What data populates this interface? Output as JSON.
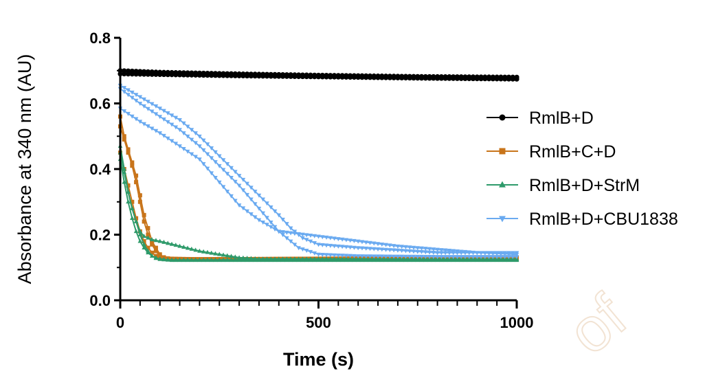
{
  "chart_data": {
    "type": "line",
    "title": "",
    "xlabel": "Time (s)",
    "ylabel": "Absorbance at 340 nm (AU)",
    "xlim": [
      0,
      1000
    ],
    "ylim": [
      0,
      0.8
    ],
    "x_ticks": [
      "0",
      "500",
      "1000"
    ],
    "y_ticks": [
      "0.0",
      "0.2",
      "0.4",
      "0.6",
      "0.8"
    ],
    "grid": false,
    "legend_position": "right",
    "watermark": "of",
    "series": [
      {
        "name": "RmlB+D",
        "color": "#000000",
        "marker": "circle",
        "replicates": [
          [
            [
              0,
              0.7
            ],
            [
              100,
              0.695
            ],
            [
              300,
              0.69
            ],
            [
              500,
              0.686
            ],
            [
              750,
              0.682
            ],
            [
              1000,
              0.68
            ]
          ],
          [
            [
              0,
              0.69
            ],
            [
              100,
              0.688
            ],
            [
              300,
              0.684
            ],
            [
              500,
              0.681
            ],
            [
              750,
              0.677
            ],
            [
              1000,
              0.674
            ]
          ]
        ]
      },
      {
        "name": "RmlB+C+D",
        "color": "#c8741a",
        "marker": "square",
        "replicates": [
          [
            [
              0,
              0.56
            ],
            [
              10,
              0.5
            ],
            [
              20,
              0.46
            ],
            [
              30,
              0.42
            ],
            [
              40,
              0.38
            ],
            [
              50,
              0.32
            ],
            [
              60,
              0.26
            ],
            [
              70,
              0.22
            ],
            [
              80,
              0.18
            ],
            [
              90,
              0.16
            ],
            [
              100,
              0.14
            ],
            [
              110,
              0.13
            ],
            [
              130,
              0.125
            ],
            [
              200,
              0.125
            ],
            [
              1000,
              0.128
            ]
          ],
          [
            [
              0,
              0.53
            ],
            [
              10,
              0.49
            ],
            [
              20,
              0.45
            ],
            [
              30,
              0.41
            ],
            [
              40,
              0.36
            ],
            [
              50,
              0.3
            ],
            [
              60,
              0.24
            ],
            [
              70,
              0.2
            ],
            [
              80,
              0.17
            ],
            [
              90,
              0.15
            ],
            [
              100,
              0.135
            ],
            [
              120,
              0.127
            ],
            [
              200,
              0.125
            ],
            [
              1000,
              0.13
            ]
          ],
          [
            [
              0,
              0.45
            ],
            [
              10,
              0.4
            ],
            [
              20,
              0.35
            ],
            [
              30,
              0.3
            ],
            [
              40,
              0.25
            ],
            [
              50,
              0.21
            ],
            [
              60,
              0.18
            ],
            [
              70,
              0.16
            ],
            [
              80,
              0.145
            ],
            [
              90,
              0.135
            ],
            [
              100,
              0.13
            ],
            [
              140,
              0.125
            ],
            [
              1000,
              0.128
            ]
          ]
        ]
      },
      {
        "name": "RmlB+D+StrM",
        "color": "#2e9a6a",
        "marker": "triangle-up",
        "replicates": [
          [
            [
              0,
              0.47
            ],
            [
              10,
              0.4
            ],
            [
              20,
              0.33
            ],
            [
              30,
              0.28
            ],
            [
              40,
              0.24
            ],
            [
              50,
              0.21
            ],
            [
              60,
              0.195
            ],
            [
              70,
              0.19
            ],
            [
              80,
              0.185
            ],
            [
              100,
              0.18
            ],
            [
              150,
              0.165
            ],
            [
              200,
              0.15
            ],
            [
              250,
              0.14
            ],
            [
              300,
              0.13
            ],
            [
              350,
              0.126
            ],
            [
              1000,
              0.126
            ]
          ],
          [
            [
              0,
              0.45
            ],
            [
              10,
              0.39
            ],
            [
              20,
              0.33
            ],
            [
              30,
              0.28
            ],
            [
              40,
              0.24
            ],
            [
              50,
              0.2
            ],
            [
              60,
              0.17
            ],
            [
              70,
              0.15
            ],
            [
              80,
              0.135
            ],
            [
              90,
              0.13
            ],
            [
              100,
              0.125
            ],
            [
              130,
              0.122
            ],
            [
              1000,
              0.122
            ]
          ],
          [
            [
              0,
              0.43
            ],
            [
              10,
              0.36
            ],
            [
              20,
              0.3
            ],
            [
              30,
              0.25
            ],
            [
              40,
              0.21
            ],
            [
              50,
              0.18
            ],
            [
              60,
              0.16
            ],
            [
              70,
              0.145
            ],
            [
              80,
              0.135
            ],
            [
              90,
              0.128
            ],
            [
              120,
              0.123
            ],
            [
              1000,
              0.124
            ]
          ]
        ]
      },
      {
        "name": "RmlB+D+CBU1838",
        "color": "#6aaaf0",
        "marker": "triangle-down",
        "replicates": [
          [
            [
              0,
              0.655
            ],
            [
              50,
              0.62
            ],
            [
              100,
              0.585
            ],
            [
              150,
              0.55
            ],
            [
              200,
              0.5
            ],
            [
              250,
              0.44
            ],
            [
              300,
              0.38
            ],
            [
              350,
              0.32
            ],
            [
              400,
              0.26
            ],
            [
              430,
              0.22
            ],
            [
              460,
              0.19
            ],
            [
              500,
              0.17
            ],
            [
              600,
              0.16
            ],
            [
              800,
              0.145
            ],
            [
              1000,
              0.145
            ]
          ],
          [
            [
              0,
              0.645
            ],
            [
              50,
              0.6
            ],
            [
              100,
              0.56
            ],
            [
              150,
              0.52
            ],
            [
              200,
              0.47
            ],
            [
              250,
              0.41
            ],
            [
              300,
              0.35
            ],
            [
              350,
              0.28
            ],
            [
              400,
              0.21
            ],
            [
              450,
              0.16
            ],
            [
              500,
              0.14
            ],
            [
              600,
              0.135
            ],
            [
              800,
              0.133
            ],
            [
              1000,
              0.133
            ]
          ],
          [
            [
              0,
              0.585
            ],
            [
              50,
              0.545
            ],
            [
              100,
              0.51
            ],
            [
              150,
              0.47
            ],
            [
              200,
              0.43
            ],
            [
              250,
              0.36
            ],
            [
              300,
              0.29
            ],
            [
              350,
              0.245
            ],
            [
              400,
              0.21
            ],
            [
              500,
              0.195
            ],
            [
              600,
              0.18
            ],
            [
              700,
              0.165
            ],
            [
              800,
              0.155
            ],
            [
              900,
              0.145
            ],
            [
              1000,
              0.14
            ]
          ]
        ]
      }
    ]
  }
}
